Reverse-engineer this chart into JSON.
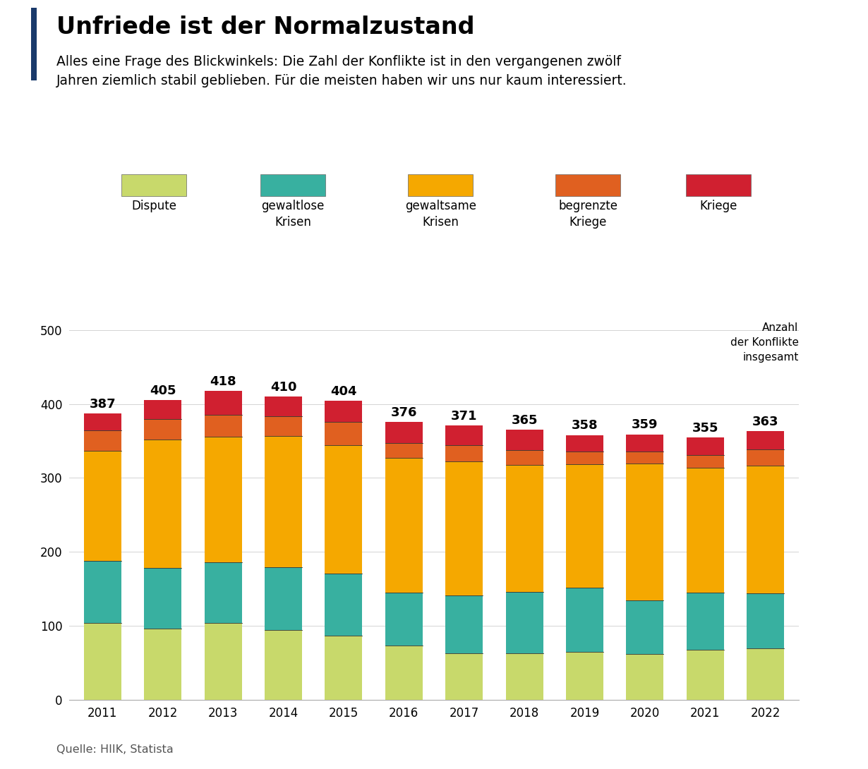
{
  "years": [
    2011,
    2012,
    2013,
    2014,
    2015,
    2016,
    2017,
    2018,
    2019,
    2020,
    2021,
    2022
  ],
  "totals": [
    387,
    405,
    418,
    410,
    404,
    376,
    371,
    365,
    358,
    359,
    355,
    363
  ],
  "dispute": [
    104,
    96,
    104,
    94,
    87,
    73,
    63,
    63,
    65,
    62,
    68,
    70
  ],
  "gewaltlose_krisen": [
    84,
    82,
    82,
    85,
    84,
    72,
    78,
    83,
    87,
    72,
    77,
    74
  ],
  "gewaltsame_krisen": [
    149,
    174,
    170,
    178,
    173,
    182,
    181,
    172,
    167,
    186,
    169,
    173
  ],
  "begrenzte_kriege": [
    27,
    28,
    29,
    26,
    32,
    20,
    22,
    20,
    17,
    16,
    17,
    22
  ],
  "kriege": [
    23,
    25,
    33,
    27,
    28,
    29,
    27,
    27,
    22,
    23,
    24,
    24
  ],
  "colors": {
    "dispute": "#c8d96b",
    "gewaltlose_krisen": "#38b0a0",
    "gewaltsame_krisen": "#f5a800",
    "begrenzte_kriege": "#e06020",
    "kriege": "#d02030"
  },
  "legend_labels": [
    "Dispute",
    "gewaltlose\nKrisen",
    "gewaltsame\nKrisen",
    "begrenzte\nKriege",
    "Kriege"
  ],
  "title": "Unfriede ist der Normalzustand",
  "subtitle": "Alles eine Frage des Blickwinkels: Die Zahl der Konflikte ist in den vergangenen zwölf\nJahren ziemlich stabil geblieben. Für die meisten haben wir uns nur kaum interessiert.",
  "source": "Quelle: HIIK, Statista",
  "annotation": "Anzahl\nder Konflikte\ninsgesamt",
  "ylim": [
    0,
    520
  ],
  "yticks": [
    0,
    100,
    200,
    300,
    400,
    500
  ],
  "background_color": "#ffffff",
  "accent_color": "#1a3a6b",
  "bar_width": 0.62
}
